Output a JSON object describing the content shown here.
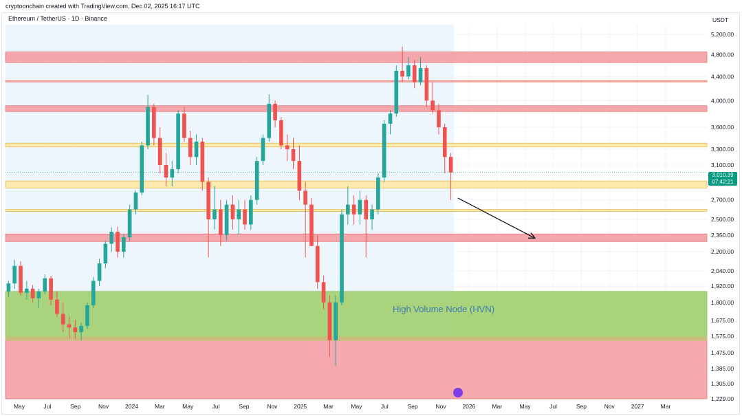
{
  "header": {
    "attribution": "cryptoonchain created with TradingView.com, Dec 02, 2025 16:17 UTC",
    "symbol": "Ethereum / TetherUS · 1D · Binance",
    "currency": "USDT"
  },
  "price_tag": {
    "price": "3,010.39",
    "countdown": "07:42:21",
    "color": "#089981"
  },
  "annotation": {
    "hvn_label": "High Volume Node (HVN)"
  },
  "colors": {
    "up": "#26a69a",
    "down": "#ef5350",
    "resistance_zone": "#f4a3a8",
    "support_band": "#fce9a9",
    "hvn_zone": "#a6d276",
    "sell_zone": "#f6a5aa",
    "history_shade": "#eef6fd"
  },
  "chart_data": {
    "type": "candlestick",
    "title": "Ethereum / TetherUS · 1D · Binance",
    "y_scale": "log",
    "ylim": [
      1229,
      5400
    ],
    "y_ticks": [
      "5,200.00",
      "4,800.00",
      "4,400.00",
      "4,000.00",
      "3,600.00",
      "3,300.00",
      "3,100.00",
      "2,700.00",
      "2,500.00",
      "2,350.00",
      "2,200.00",
      "2,040.00",
      "1,920.00",
      "1,800.00",
      "1,675.00",
      "1,575.00",
      "1,475.00",
      "1,385.00",
      "1,305.00",
      "1,229.00"
    ],
    "x_ticks": [
      "May",
      "Jul",
      "Sep",
      "Nov",
      "2024",
      "Mar",
      "May",
      "Jul",
      "Sep",
      "Nov",
      "2025",
      "Mar",
      "May",
      "Jul",
      "Sep",
      "Nov",
      "2026",
      "Mar",
      "May",
      "Jul",
      "Sep",
      "Nov",
      "2027",
      "Mar"
    ],
    "series": [
      {
        "values": [
          [
            1880,
            1960,
            1840,
            1940
          ],
          [
            1940,
            2130,
            1900,
            2080
          ],
          [
            2080,
            2120,
            1850,
            1870
          ],
          [
            1870,
            1960,
            1820,
            1900
          ],
          [
            1900,
            1930,
            1800,
            1830
          ],
          [
            1830,
            1900,
            1760,
            1880
          ],
          [
            1880,
            2010,
            1860,
            1980
          ],
          [
            1980,
            2000,
            1780,
            1820
          ],
          [
            1820,
            1880,
            1700,
            1720
          ],
          [
            1720,
            1800,
            1600,
            1650
          ],
          [
            1650,
            1700,
            1560,
            1630
          ],
          [
            1630,
            1680,
            1560,
            1600
          ],
          [
            1600,
            1660,
            1550,
            1640
          ],
          [
            1640,
            1800,
            1620,
            1780
          ],
          [
            1780,
            1990,
            1760,
            1960
          ],
          [
            1960,
            2140,
            1920,
            2100
          ],
          [
            2100,
            2300,
            2060,
            2270
          ],
          [
            2270,
            2420,
            2200,
            2380
          ],
          [
            2380,
            2430,
            2150,
            2200
          ],
          [
            2200,
            2360,
            2150,
            2330
          ],
          [
            2330,
            2650,
            2300,
            2600
          ],
          [
            2600,
            2800,
            2550,
            2780
          ],
          [
            2780,
            3400,
            2750,
            3350
          ],
          [
            3350,
            4090,
            3300,
            3900
          ],
          [
            3900,
            3950,
            3350,
            3450
          ],
          [
            3450,
            3600,
            3000,
            3100
          ],
          [
            3100,
            3250,
            2850,
            2950
          ],
          [
            2950,
            3150,
            2850,
            3050
          ],
          [
            3050,
            3850,
            3000,
            3800
          ],
          [
            3800,
            3900,
            3400,
            3450
          ],
          [
            3450,
            3550,
            3100,
            3200
          ],
          [
            3200,
            3500,
            3100,
            3400
          ],
          [
            3400,
            3450,
            2800,
            2900
          ],
          [
            2900,
            2950,
            2150,
            2500
          ],
          [
            2500,
            2850,
            2400,
            2600
          ],
          [
            2600,
            2700,
            2250,
            2350
          ],
          [
            2350,
            2700,
            2300,
            2650
          ],
          [
            2650,
            2750,
            2400,
            2500
          ],
          [
            2500,
            2700,
            2350,
            2600
          ],
          [
            2600,
            2700,
            2400,
            2450
          ],
          [
            2450,
            2750,
            2400,
            2700
          ],
          [
            2700,
            3200,
            2650,
            3150
          ],
          [
            3150,
            3500,
            3100,
            3450
          ],
          [
            3450,
            4100,
            3400,
            3950
          ],
          [
            3950,
            4000,
            3600,
            3700
          ],
          [
            3700,
            3750,
            3300,
            3350
          ],
          [
            3350,
            3500,
            3150,
            3300
          ],
          [
            3300,
            3450,
            3050,
            3150
          ],
          [
            3150,
            3350,
            2700,
            2800
          ],
          [
            2800,
            2900,
            2150,
            2650
          ],
          [
            2650,
            2720,
            2250,
            2250
          ],
          [
            2250,
            2350,
            1900,
            1950
          ],
          [
            1950,
            2000,
            1750,
            1800
          ],
          [
            1800,
            1850,
            1450,
            1550
          ],
          [
            1550,
            1850,
            1400,
            1800
          ],
          [
            1800,
            2600,
            1780,
            2550
          ],
          [
            2550,
            2850,
            2450,
            2650
          ],
          [
            2650,
            2750,
            2450,
            2550
          ],
          [
            2550,
            2800,
            2450,
            2700
          ],
          [
            2700,
            2750,
            2150,
            2500
          ],
          [
            2500,
            2650,
            2400,
            2600
          ],
          [
            2600,
            3000,
            2550,
            2950
          ],
          [
            2950,
            3700,
            2900,
            3650
          ],
          [
            3650,
            3850,
            3500,
            3800
          ],
          [
            3800,
            4600,
            3750,
            4500
          ],
          [
            4500,
            4950,
            4300,
            4400
          ],
          [
            4400,
            4750,
            4350,
            4600
          ],
          [
            4600,
            4700,
            4200,
            4300
          ],
          [
            4300,
            4750,
            4250,
            4550
          ],
          [
            4550,
            4600,
            3900,
            4000
          ],
          [
            4000,
            4300,
            3800,
            3850
          ],
          [
            3850,
            3950,
            3500,
            3600
          ],
          [
            3600,
            3650,
            3000,
            3200
          ],
          [
            3200,
            3250,
            2700,
            3010
          ]
        ]
      }
    ],
    "last_price": "3,010.39",
    "zones": [
      {
        "kind": "resistance",
        "range": [
          4650,
          4850
        ]
      },
      {
        "kind": "resistance",
        "range": [
          3830,
          3920
        ]
      },
      {
        "kind": "level",
        "range": [
          4320,
          4330
        ]
      },
      {
        "kind": "support",
        "range": [
          3330,
          3380
        ]
      },
      {
        "kind": "support",
        "range": [
          2830,
          2910
        ]
      },
      {
        "kind": "support",
        "range": [
          2580,
          2600
        ]
      },
      {
        "kind": "resistance",
        "range": [
          2290,
          2360
        ]
      },
      {
        "kind": "hvn",
        "range": [
          1560,
          1880
        ]
      },
      {
        "kind": "sell",
        "range": [
          1229,
          1560
        ]
      }
    ],
    "forecast_arrow": {
      "from_price": 2720,
      "to_price": 2320,
      "direction": "down"
    },
    "grid": true
  }
}
